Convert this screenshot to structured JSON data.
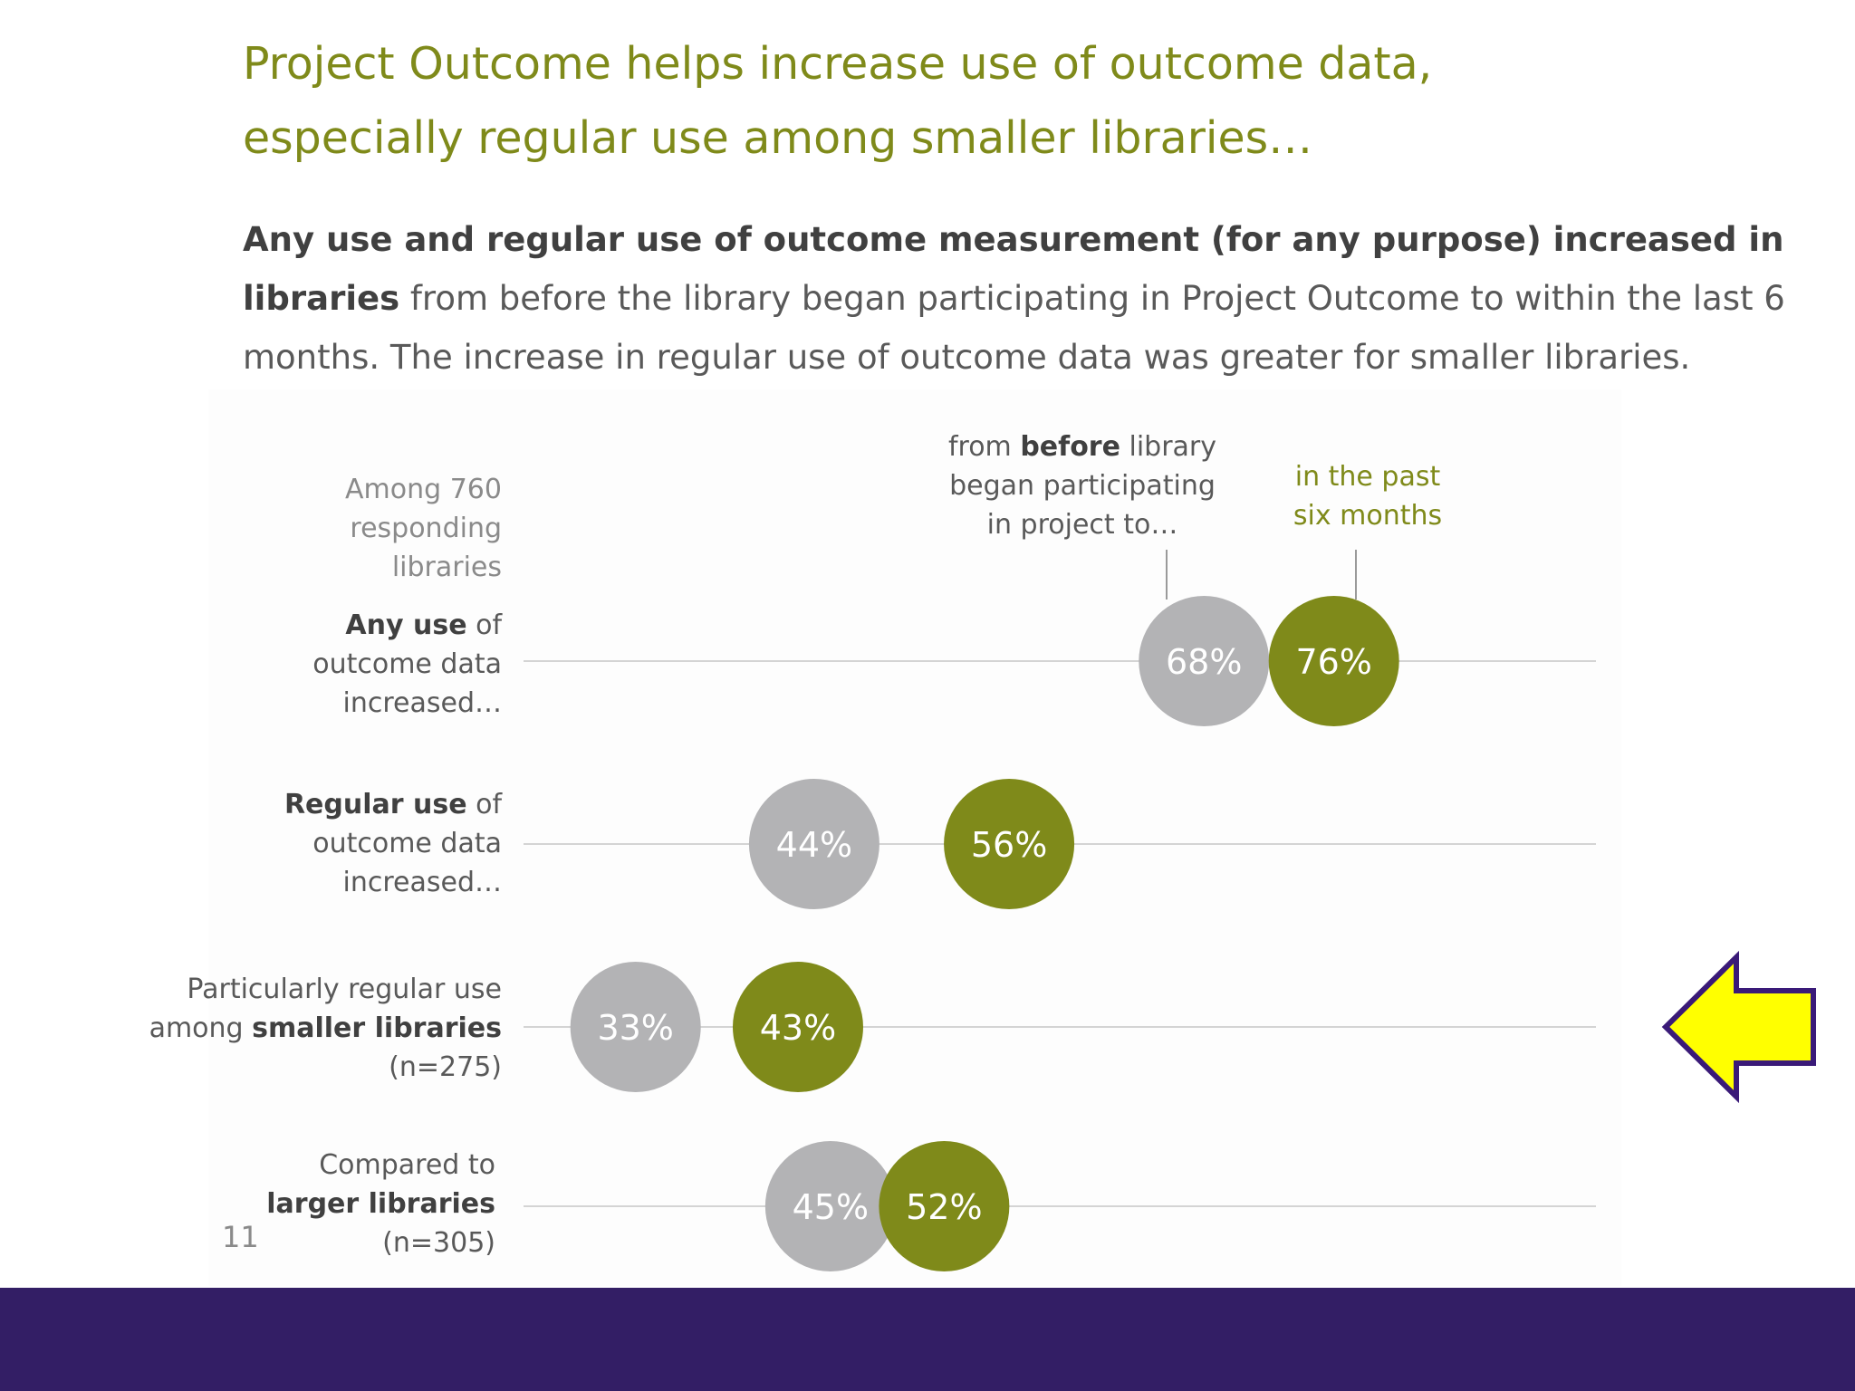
{
  "title": {
    "line1": "Project Outcome helps increase use of outcome data,",
    "line2": "especially regular use among smaller libraries…"
  },
  "subtitle": {
    "bold": "Any use and regular use of outcome measurement (for any purpose) increased in libraries",
    "rest": "from before the library began participating in Project Outcome to within the last 6 months. The increase in regular use of outcome data was greater for smaller libraries."
  },
  "respondents": {
    "line1": "Among 760",
    "line2": "responding",
    "line3": "libraries"
  },
  "headers": {
    "before_pre": "from ",
    "before_bold": "before",
    "before_post": " library",
    "before_line2": "began participating",
    "before_line3": "in project to…",
    "after_line1": "in the past",
    "after_line2": "six months"
  },
  "rows": [
    {
      "bold": "Any use",
      "tail": " of",
      "line2": "outcome data",
      "line3": "increased…"
    },
    {
      "bold": "Regular use",
      "tail": " of",
      "line2": "outcome data",
      "line3": "increased…"
    },
    {
      "pre": "Particularly regular use",
      "line2_pre": "among ",
      "line2_bold": "smaller libraries",
      "line3": "(n=275)"
    },
    {
      "pre": "Compared to",
      "line2_bold": "larger libraries",
      "line3": "(n=305)"
    }
  ],
  "page_number": "11",
  "colors": {
    "before": "#b3b3b5",
    "after": "#7f8a1a",
    "title": "#7f8a1a",
    "footer": "#331e65",
    "arrow_fill": "#ffff00",
    "arrow_stroke": "#3a1a78"
  },
  "chart_data": {
    "type": "dot",
    "title": "Any use and regular use of outcome measurement (for any purpose) increased in libraries",
    "xlabel": "",
    "ylabel": "",
    "xlim": [
      0,
      100
    ],
    "categories": [
      "Any use of outcome data increased…",
      "Regular use of outcome data increased…",
      "Particularly regular use among smaller libraries (n=275)",
      "Compared to larger libraries (n=305)"
    ],
    "series": [
      {
        "name": "from before library began participating in project to…",
        "values": [
          68,
          44,
          33,
          45
        ],
        "labels": [
          "68%",
          "44%",
          "33%",
          "45%"
        ]
      },
      {
        "name": "in the past six months",
        "values": [
          76,
          56,
          43,
          52
        ],
        "labels": [
          "76%",
          "56%",
          "43%",
          "52%"
        ]
      }
    ],
    "highlight": {
      "category_index": 2,
      "marker": "arrow"
    }
  }
}
